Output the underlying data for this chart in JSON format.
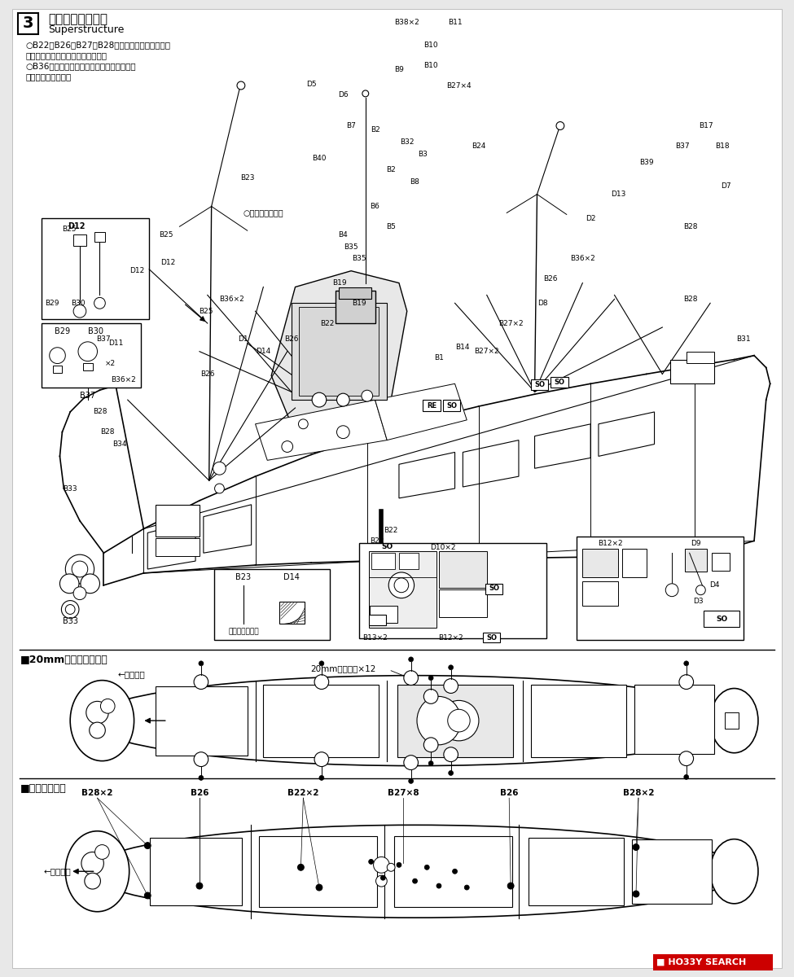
{
  "bg_color": "#ffffff",
  "title_step": "3",
  "title_jp": "構造物の組み立て",
  "title_en": "Superstructure",
  "note1": "○B22、B26、B27、B28、の各通風筒は実艦では",
  "note2": "どの方向でも向ける事が出来ます。",
  "note3": "○B36のクレーン・ブームは角度を変えても",
  "note4": "お楽しみ頂けます。",
  "boom_note": "○ブーム受けです",
  "flat_note": "後面がフラット",
  "section2_title": "■20mm単装機銃の配置",
  "section3_title": "■通風筒の配置",
  "gun_label": "20mm単装機銃×12",
  "bow_label": "←艦首方向",
  "vent_labels": [
    "B28×2",
    "B26",
    "B22×2",
    "B27×8",
    "B26",
    "B28×2"
  ],
  "logo_text": "HO33Y SEARCH"
}
